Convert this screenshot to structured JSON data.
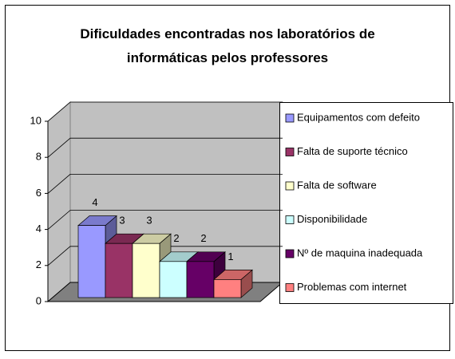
{
  "chart_data": {
    "type": "bar3d",
    "title": "Dificuldades encontradas nos laboratórios de informáticas pelos professores",
    "ylim": [
      0,
      10
    ],
    "yticks": [
      0,
      2,
      4,
      6,
      8,
      10
    ],
    "grid": true,
    "legend": "right",
    "series": [
      {
        "name": "Equipamentos com defeito",
        "color": "#9999ff",
        "values": [
          4
        ]
      },
      {
        "name": "Falta de suporte técnico",
        "color": "#993366",
        "values": [
          3
        ]
      },
      {
        "name": "Falta de software",
        "color": "#ffffcc",
        "values": [
          3
        ]
      },
      {
        "name": "Disponibilidade",
        "color": "#ccffff",
        "values": [
          2
        ]
      },
      {
        "name": "Nº de maquina inadequada",
        "color": "#660066",
        "values": [
          2
        ]
      },
      {
        "name": "Problemas com internet",
        "color": "#ff8080",
        "values": [
          1
        ]
      }
    ]
  }
}
